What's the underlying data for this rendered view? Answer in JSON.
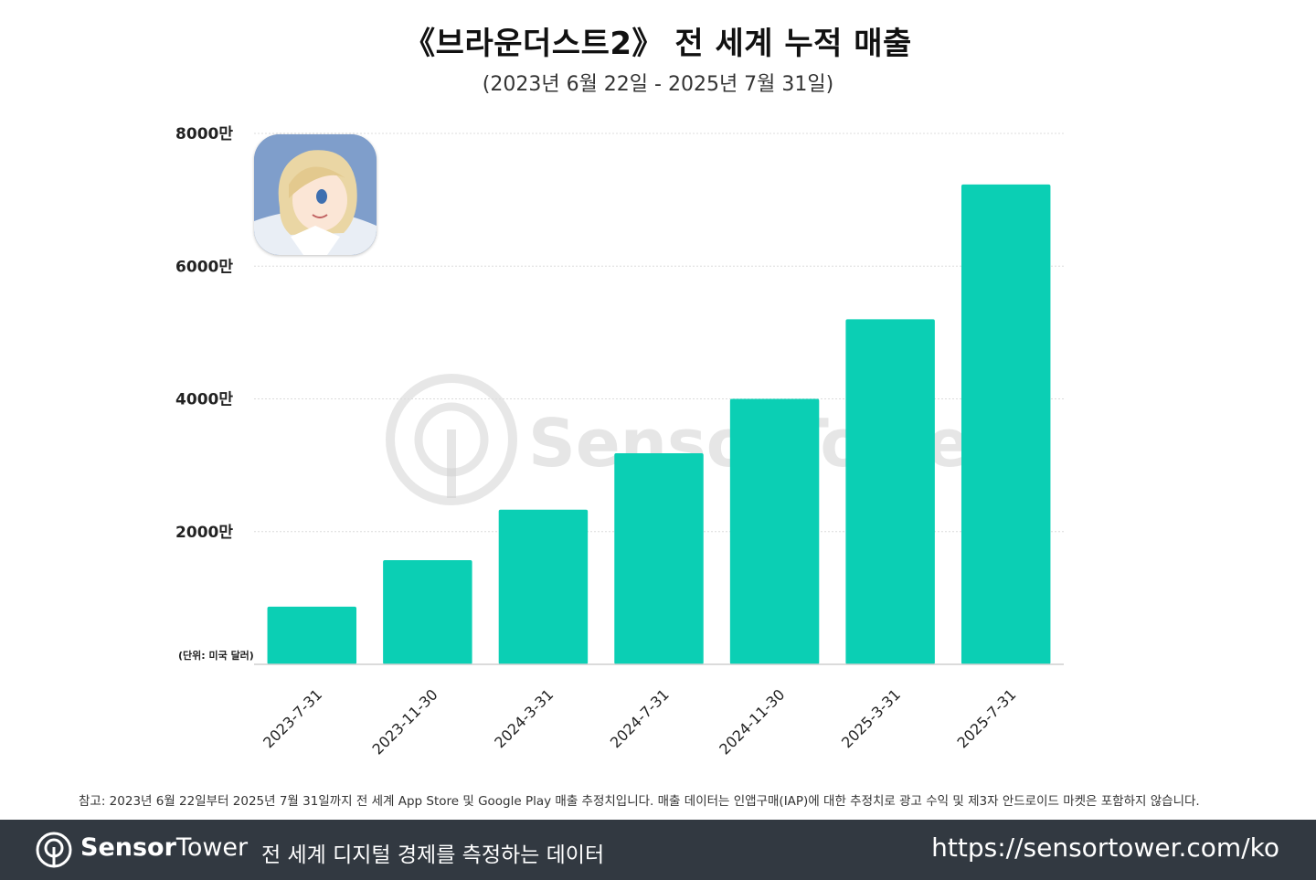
{
  "header": {
    "title": "《브라운더스트2》 전 세계 누적 매출",
    "subtitle": "(2023년 6월 22일 - 2025년 7월 31일)"
  },
  "chart_data": {
    "type": "bar",
    "categories": [
      "2023-7-31",
      "2023-11-30",
      "2024-3-31",
      "2024-7-31",
      "2024-11-30",
      "2025-3-31",
      "2025-7-31"
    ],
    "values": [
      8700000,
      15700000,
      23300000,
      31800000,
      40000000,
      52000000,
      72300000
    ],
    "ylim": [
      0,
      80000000
    ],
    "yticks": [
      {
        "value": 20000000,
        "label": "2000만"
      },
      {
        "value": 40000000,
        "label": "4000만"
      },
      {
        "value": 60000000,
        "label": "6000만"
      },
      {
        "value": 80000000,
        "label": "8000만"
      }
    ],
    "unit_label": "(단위: 미국 달러)",
    "bar_color": "#0bcfb4",
    "grid": true,
    "legend": "none"
  },
  "watermark": {
    "text": "SensorTower"
  },
  "footnote": "참고: 2023년 6월 22일부터 2025년 7월 31일까지 전 세계 App Store 및 Google Play 매출 추정치입니다. 매출 데이터는 인앱구매(IAP)에 대한 추정치로 광고 수익 및 제3자 안드로이드 마켓은 포함하지 않습니다.",
  "footer": {
    "brand_bold": "Sensor",
    "brand_light": "Tower",
    "tagline": "전 세계 디지털 경제를 측정하는 데이터",
    "url": "https://sensortower.com/ko"
  },
  "colors": {
    "footer_bg": "#323941",
    "accent": "#0bcfb4"
  }
}
